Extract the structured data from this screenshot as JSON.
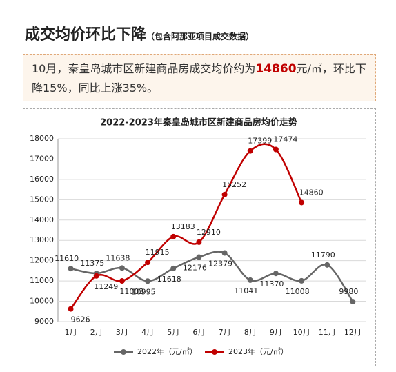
{
  "header": {
    "title": "成交均价环比下降",
    "subtitle": "（包含阿那亚项目成交数据）"
  },
  "summary": {
    "before": "10月，秦皇岛城市区新建商品房成交均价约为",
    "highlight": "14860",
    "after": "元/㎡，环比下降15%，同比上涨35%。"
  },
  "chart_data": {
    "type": "line",
    "title": "2022-2023年秦皇岛城市区新建商品房均价走势",
    "categories": [
      "1月",
      "2月",
      "3月",
      "4月",
      "5月",
      "6月",
      "7月",
      "8月",
      "9月",
      "10月",
      "11月",
      "12月"
    ],
    "series": [
      {
        "name": "2022年（元/㎡）",
        "color": "#666666",
        "values": [
          11610,
          11375,
          11638,
          10995,
          11618,
          12176,
          12379,
          11041,
          11370,
          11008,
          11790,
          9980
        ]
      },
      {
        "name": "2023年（元/㎡）",
        "color": "#c00000",
        "values": [
          9626,
          11249,
          11003,
          11915,
          13183,
          12910,
          15252,
          17399,
          17474,
          14860,
          null,
          null
        ]
      }
    ],
    "ylim": [
      9000,
      18000
    ],
    "yticks": [
      9000,
      10000,
      11000,
      12000,
      13000,
      14000,
      15000,
      16000,
      17000,
      18000
    ],
    "grid": true,
    "smooth": true,
    "legend": "bottom"
  }
}
